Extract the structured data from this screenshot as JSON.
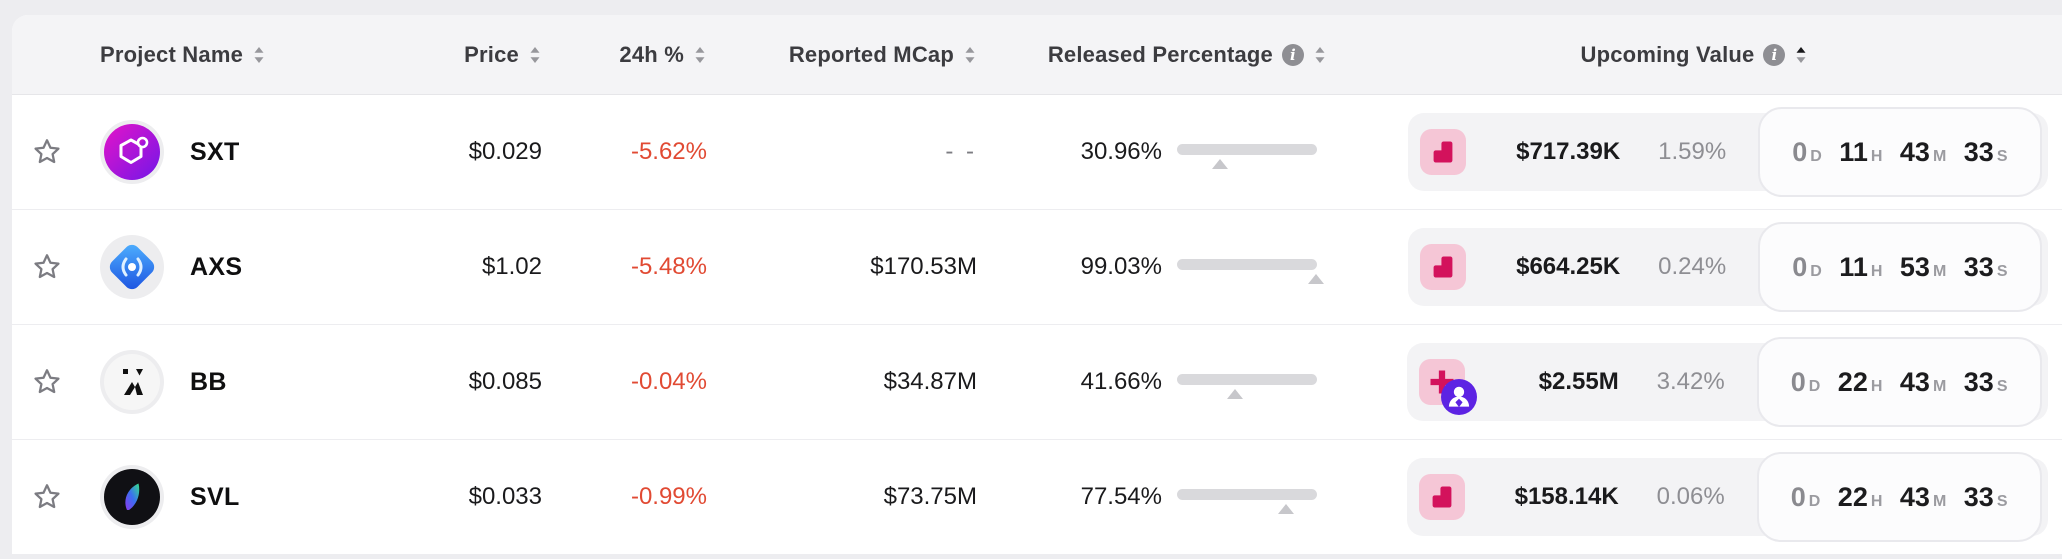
{
  "header": {
    "columns": {
      "project": {
        "label": "Project Name"
      },
      "price": {
        "label": "Price"
      },
      "change24h": {
        "label": "24h %"
      },
      "mcap": {
        "label": "Reported MCap"
      },
      "released": {
        "label": "Released Percentage",
        "has_info_icon": true
      },
      "upcoming": {
        "label": "Upcoming Value",
        "has_info_icon": true
      }
    },
    "sort": {
      "active_column": "upcoming",
      "direction": "asc"
    }
  },
  "rows": [
    {
      "symbol": "SXT",
      "logo": "sxt",
      "price": "$0.029",
      "change_24h": "-5.62%",
      "change_direction": "down",
      "reported_mcap": "- -",
      "released_percentage_label": "30.96%",
      "released_percentage": 30.96,
      "unlock_icons": [
        "cliff"
      ],
      "upcoming_value": "$717.39K",
      "upcoming_percent_of_mcap": "1.59%",
      "countdown": [
        {
          "value": "0",
          "unit": "D",
          "dim": true
        },
        {
          "value": "11",
          "unit": "H",
          "dim": false
        },
        {
          "value": "43",
          "unit": "M",
          "dim": false
        },
        {
          "value": "33",
          "unit": "S",
          "dim": false
        }
      ],
      "favorited": false
    },
    {
      "symbol": "AXS",
      "logo": "axs",
      "price": "$1.02",
      "change_24h": "-5.48%",
      "change_direction": "down",
      "reported_mcap": "$170.53M",
      "released_percentage_label": "99.03%",
      "released_percentage": 99.03,
      "unlock_icons": [
        "cliff"
      ],
      "upcoming_value": "$664.25K",
      "upcoming_percent_of_mcap": "0.24%",
      "countdown": [
        {
          "value": "0",
          "unit": "D",
          "dim": true
        },
        {
          "value": "11",
          "unit": "H",
          "dim": false
        },
        {
          "value": "53",
          "unit": "M",
          "dim": false
        },
        {
          "value": "33",
          "unit": "S",
          "dim": false
        }
      ],
      "favorited": false
    },
    {
      "symbol": "BB",
      "logo": "bb",
      "price": "$0.085",
      "change_24h": "-0.04%",
      "change_direction": "down",
      "reported_mcap": "$34.87M",
      "released_percentage_label": "41.66%",
      "released_percentage": 41.66,
      "unlock_icons": [
        "allocations",
        "investor-badge"
      ],
      "upcoming_value": "$2.55M",
      "upcoming_percent_of_mcap": "3.42%",
      "countdown": [
        {
          "value": "0",
          "unit": "D",
          "dim": true
        },
        {
          "value": "22",
          "unit": "H",
          "dim": false
        },
        {
          "value": "43",
          "unit": "M",
          "dim": false
        },
        {
          "value": "33",
          "unit": "S",
          "dim": false
        }
      ],
      "favorited": false
    },
    {
      "symbol": "SVL",
      "logo": "svl",
      "price": "$0.033",
      "change_24h": "-0.99%",
      "change_direction": "down",
      "reported_mcap": "$73.75M",
      "released_percentage_label": "77.54%",
      "released_percentage": 77.54,
      "unlock_icons": [
        "cliff"
      ],
      "upcoming_value": "$158.14K",
      "upcoming_percent_of_mcap": "0.06%",
      "countdown": [
        {
          "value": "0",
          "unit": "D",
          "dim": true
        },
        {
          "value": "22",
          "unit": "H",
          "dim": false
        },
        {
          "value": "43",
          "unit": "M",
          "dim": false
        },
        {
          "value": "33",
          "unit": "S",
          "dim": false
        }
      ],
      "favorited": false
    }
  ],
  "colors": {
    "progress_green": "#26a126",
    "progress_track": "#d9d9dc",
    "negative_red": "#e14a33",
    "unlock_icon_pink_bg": "#f5c6d6",
    "unlock_icon_crimson": "#d3125c",
    "investor_badge_purple": "#5d23e3",
    "header_bg": "#f4f4f6",
    "page_bg": "#ededf0"
  }
}
